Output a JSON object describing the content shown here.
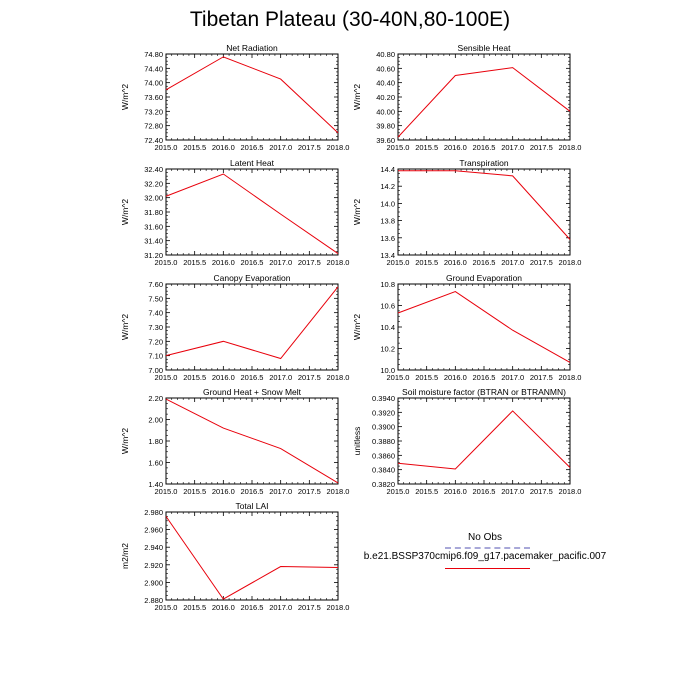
{
  "title": "Tibetan Plateau (30-40N,80-100E)",
  "legend": {
    "obs_label": "No Obs",
    "series_label": "b.e21.BSSP370cmip6.f09_g17.pacemaker_pacific.007",
    "obs_color": "#a8a8d8",
    "series_color": "#e8000b"
  },
  "chart_data": [
    {
      "type": "line",
      "title": "Net Radiation",
      "ylabel": "W/m^2",
      "x": [
        2015,
        2016,
        2017,
        2018
      ],
      "values": [
        73.8,
        74.72,
        74.1,
        72.6
      ],
      "xlim": [
        2015,
        2018
      ],
      "ylim": [
        72.4,
        74.8
      ],
      "xticks": [
        "2015.0",
        "2015.5",
        "2016.0",
        "2016.5",
        "2017.0",
        "2017.5",
        "2018.0"
      ],
      "yticks": [
        "72.40",
        "72.80",
        "73.20",
        "73.60",
        "74.00",
        "74.40",
        "74.80"
      ]
    },
    {
      "type": "line",
      "title": "Sensible Heat",
      "ylabel": "W/m^2",
      "x": [
        2015,
        2016,
        2017,
        2018
      ],
      "values": [
        39.64,
        40.5,
        40.61,
        40.0
      ],
      "xlim": [
        2015,
        2018
      ],
      "ylim": [
        39.6,
        40.8
      ],
      "xticks": [
        "2015.0",
        "2015.5",
        "2016.0",
        "2016.5",
        "2017.0",
        "2017.5",
        "2018.0"
      ],
      "yticks": [
        "39.60",
        "39.80",
        "40.00",
        "40.20",
        "40.40",
        "40.60",
        "40.80"
      ]
    },
    {
      "type": "line",
      "title": "Latent Heat",
      "ylabel": "W/m^2",
      "x": [
        2015,
        2016,
        2017,
        2018
      ],
      "values": [
        32.02,
        32.33,
        31.77,
        31.22
      ],
      "xlim": [
        2015,
        2018
      ],
      "ylim": [
        31.2,
        32.4
      ],
      "xticks": [
        "2015.0",
        "2015.5",
        "2016.0",
        "2016.5",
        "2017.0",
        "2017.5",
        "2018.0"
      ],
      "yticks": [
        "31.20",
        "31.40",
        "31.60",
        "31.80",
        "32.00",
        "32.20",
        "32.40"
      ]
    },
    {
      "type": "line",
      "title": "Transpiration",
      "ylabel": "W/m^2",
      "x": [
        2015,
        2016,
        2017,
        2018
      ],
      "values": [
        14.38,
        14.38,
        14.32,
        13.58
      ],
      "xlim": [
        2015,
        2018
      ],
      "ylim": [
        13.4,
        14.4
      ],
      "xticks": [
        "2015.0",
        "2015.5",
        "2016.0",
        "2016.5",
        "2017.0",
        "2017.5",
        "2018.0"
      ],
      "yticks": [
        "13.4",
        "13.6",
        "13.8",
        "14.0",
        "14.2",
        "14.4"
      ]
    },
    {
      "type": "line",
      "title": "Canopy Evaporation",
      "ylabel": "W/m^2",
      "x": [
        2015,
        2016,
        2017,
        2018
      ],
      "values": [
        7.1,
        7.2,
        7.08,
        7.58
      ],
      "xlim": [
        2015,
        2018
      ],
      "ylim": [
        7.0,
        7.6
      ],
      "xticks": [
        "2015.0",
        "2015.5",
        "2016.0",
        "2016.5",
        "2017.0",
        "2017.5",
        "2018.0"
      ],
      "yticks": [
        "7.00",
        "7.10",
        "7.20",
        "7.30",
        "7.40",
        "7.50",
        "7.60"
      ]
    },
    {
      "type": "line",
      "title": "Ground Evaporation",
      "ylabel": "W/m^2",
      "x": [
        2015,
        2016,
        2017,
        2018
      ],
      "values": [
        10.53,
        10.73,
        10.37,
        10.07
      ],
      "xlim": [
        2015,
        2018
      ],
      "ylim": [
        10.0,
        10.8
      ],
      "xticks": [
        "2015.0",
        "2015.5",
        "2016.0",
        "2016.5",
        "2017.0",
        "2017.5",
        "2018.0"
      ],
      "yticks": [
        "10.0",
        "10.2",
        "10.4",
        "10.6",
        "10.8"
      ]
    },
    {
      "type": "line",
      "title": "Ground Heat + Snow Melt",
      "ylabel": "W/m^2",
      "x": [
        2015,
        2016,
        2017,
        2018
      ],
      "values": [
        2.19,
        1.92,
        1.73,
        1.41
      ],
      "xlim": [
        2015,
        2018
      ],
      "ylim": [
        1.4,
        2.2
      ],
      "xticks": [
        "2015.0",
        "2015.5",
        "2016.0",
        "2016.5",
        "2017.0",
        "2017.5",
        "2018.0"
      ],
      "yticks": [
        "1.40",
        "1.60",
        "1.80",
        "2.00",
        "2.20"
      ]
    },
    {
      "type": "line",
      "title": "Soil moisture factor (BTRAN or BTRANMN)",
      "ylabel": "unitless",
      "x": [
        2015,
        2016,
        2017,
        2018
      ],
      "values": [
        0.3849,
        0.3841,
        0.3922,
        0.3843
      ],
      "xlim": [
        2015,
        2018
      ],
      "ylim": [
        0.382,
        0.394
      ],
      "xticks": [
        "2015.0",
        "2015.5",
        "2016.0",
        "2016.5",
        "2017.0",
        "2017.5",
        "2018.0"
      ],
      "yticks": [
        "0.3820",
        "0.3840",
        "0.3860",
        "0.3880",
        "0.3900",
        "0.3920",
        "0.3940"
      ]
    },
    {
      "type": "line",
      "title": "Total LAI",
      "ylabel": "m2/m2",
      "x": [
        2015,
        2016,
        2017,
        2018
      ],
      "values": [
        2.975,
        2.881,
        2.918,
        2.917
      ],
      "xlim": [
        2015,
        2018
      ],
      "ylim": [
        2.88,
        2.98
      ],
      "xticks": [
        "2015.0",
        "2015.5",
        "2016.0",
        "2016.5",
        "2017.0",
        "2017.5",
        "2018.0"
      ],
      "yticks": [
        "2.880",
        "2.900",
        "2.920",
        "2.940",
        "2.960",
        "2.980"
      ]
    }
  ]
}
